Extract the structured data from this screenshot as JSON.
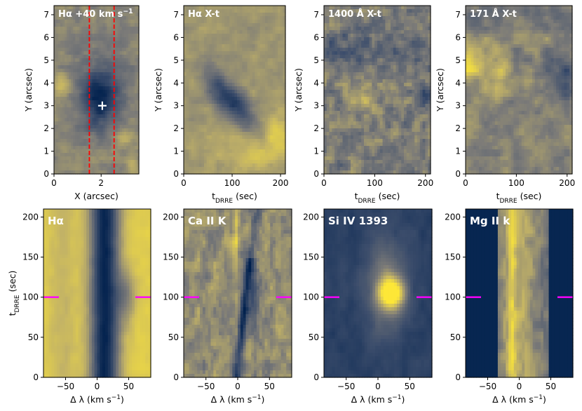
{
  "figure": {
    "colormap": "cividis",
    "marker_color": "#ff00ff",
    "slit_color": "#ff0000",
    "cross_color": "#ffffff"
  },
  "chart_data": [
    {
      "type": "heatmap",
      "title": "Hα +40 km s⁻¹",
      "xlabel": "X (arcsec)",
      "ylabel": "Y (arcsec)",
      "xlim": [
        0,
        3.6
      ],
      "ylim": [
        0,
        7.4
      ],
      "xticks": [
        "0",
        "2"
      ],
      "yticks": [
        "0",
        "1",
        "2",
        "3",
        "4",
        "5",
        "6",
        "7"
      ],
      "xtick_values": [
        0,
        2
      ],
      "ytick_values": [
        0,
        1,
        2,
        3,
        4,
        5,
        6,
        7
      ],
      "field": "ha_map",
      "slit_x": [
        1.5,
        2.55
      ],
      "cross": {
        "x": 2.05,
        "y": 3.0
      }
    },
    {
      "type": "heatmap",
      "title": "Hα X-t",
      "xlabel": "t_DRRE (sec)",
      "ylabel": "Y (arcsec)",
      "xlim": [
        0,
        210
      ],
      "ylim": [
        0,
        7.4
      ],
      "xticks": [
        "0",
        "100",
        "200"
      ],
      "yticks": [
        "0",
        "1",
        "2",
        "3",
        "4",
        "5",
        "6",
        "7"
      ],
      "xtick_values": [
        0,
        100,
        200
      ],
      "ytick_values": [
        0,
        1,
        2,
        3,
        4,
        5,
        6,
        7
      ],
      "field": "ha_xt"
    },
    {
      "type": "heatmap",
      "title": "1400 Å X-t",
      "xlabel": "t_DRRE (sec)",
      "ylabel": "Y (arcsec)",
      "xlim": [
        0,
        210
      ],
      "ylim": [
        0,
        7.4
      ],
      "xticks": [
        "0",
        "100",
        "200"
      ],
      "yticks": [
        "0",
        "1",
        "2",
        "3",
        "4",
        "5",
        "6",
        "7"
      ],
      "xtick_values": [
        0,
        100,
        200
      ],
      "ytick_values": [
        0,
        1,
        2,
        3,
        4,
        5,
        6,
        7
      ],
      "field": "sji1400_xt"
    },
    {
      "type": "heatmap",
      "title": "171 Å X-t",
      "xlabel": "t_DRRE (sec)",
      "ylabel": "Y (arcsec)",
      "xlim": [
        0,
        210
      ],
      "ylim": [
        0,
        7.4
      ],
      "xticks": [
        "0",
        "100",
        "200"
      ],
      "yticks": [
        "0",
        "1",
        "2",
        "3",
        "4",
        "5",
        "6",
        "7"
      ],
      "xtick_values": [
        0,
        100,
        200
      ],
      "ytick_values": [
        0,
        1,
        2,
        3,
        4,
        5,
        6,
        7
      ],
      "field": "aia171_xt"
    },
    {
      "type": "heatmap",
      "title": "Hα",
      "xlabel": "Δ λ (km s⁻¹)",
      "ylabel": "t_DRRE (sec)",
      "xlim": [
        -85,
        85
      ],
      "ylim": [
        0,
        210
      ],
      "xticks": [
        "−50",
        "0",
        "50"
      ],
      "yticks": [
        "0",
        "50",
        "100",
        "150",
        "200"
      ],
      "xtick_values": [
        -50,
        0,
        50
      ],
      "ytick_values": [
        0,
        50,
        100,
        150,
        200
      ],
      "field": "ha_spec",
      "marker_t": 100
    },
    {
      "type": "heatmap",
      "title": "Ca II K",
      "xlabel": "Δ λ (km s⁻¹)",
      "ylabel": "",
      "xlim": [
        -85,
        85
      ],
      "ylim": [
        0,
        210
      ],
      "xticks": [
        "−50",
        "0",
        "50"
      ],
      "yticks": [
        "0",
        "50",
        "100",
        "150",
        "200"
      ],
      "xtick_values": [
        -50,
        0,
        50
      ],
      "ytick_values": [
        0,
        50,
        100,
        150,
        200
      ],
      "field": "cak_spec",
      "marker_t": 100
    },
    {
      "type": "heatmap",
      "title": "Si IV 1393",
      "xlabel": "Δ λ (km s⁻¹)",
      "ylabel": "",
      "xlim": [
        -85,
        85
      ],
      "ylim": [
        0,
        210
      ],
      "xticks": [
        "−50",
        "0",
        "50"
      ],
      "yticks": [
        "0",
        "50",
        "100",
        "150",
        "200"
      ],
      "xtick_values": [
        -50,
        0,
        50
      ],
      "ytick_values": [
        0,
        50,
        100,
        150,
        200
      ],
      "field": "si4_spec",
      "marker_t": 100
    },
    {
      "type": "heatmap",
      "title": "Mg II k",
      "xlabel": "Δ λ (km s⁻¹)",
      "ylabel": "",
      "xlim": [
        -85,
        85
      ],
      "ylim": [
        0,
        210
      ],
      "xticks": [
        "−50",
        "0",
        "50"
      ],
      "yticks": [
        "0",
        "50",
        "100",
        "150",
        "200"
      ],
      "xtick_values": [
        -50,
        0,
        50
      ],
      "ytick_values": [
        0,
        50,
        100,
        150,
        200
      ],
      "field": "mg2k_spec",
      "marker_t": 100
    }
  ]
}
